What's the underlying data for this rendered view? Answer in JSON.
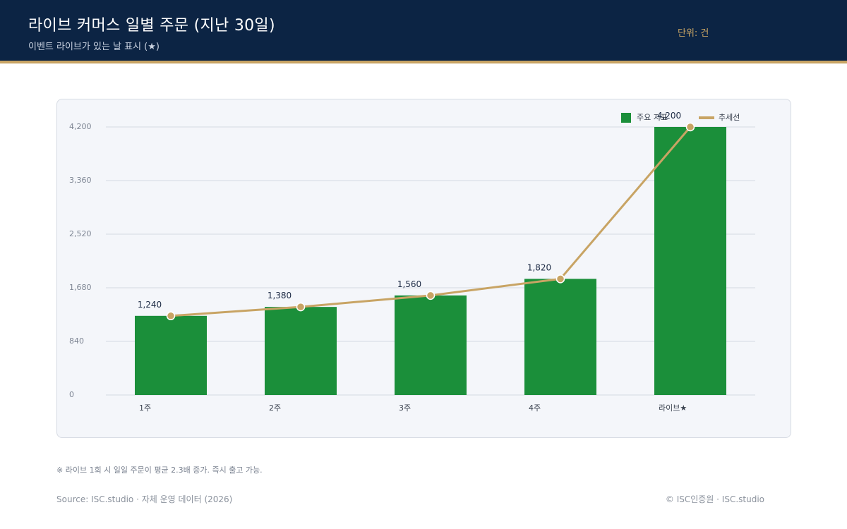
{
  "header": {
    "title": "라이브 커머스 일별 주문 (지난 30일)",
    "subtitle": "이벤트 라이브가 있는 날 표시 (★)",
    "unit": "단위: 건"
  },
  "colors": {
    "header_bg": "#0c2444",
    "accent_gold": "#c8a464",
    "bar_green": "#1b8f3a",
    "panel_bg": "#f4f6fa"
  },
  "chart_data": {
    "type": "bar",
    "categories": [
      "1주",
      "2주",
      "3주",
      "4주",
      "라이브★"
    ],
    "series": [
      {
        "name": "주요 지표",
        "type": "bar",
        "values": [
          1240,
          1380,
          1560,
          1820,
          4200
        ]
      },
      {
        "name": "추세선",
        "type": "line",
        "values": [
          1240,
          1380,
          1560,
          1820,
          4200
        ]
      }
    ],
    "data_labels": [
      "1,240",
      "1,380",
      "1,560",
      "1,820",
      "4,200"
    ],
    "ylim": [
      0,
      4200
    ],
    "yticks": [
      0,
      840,
      1680,
      2520,
      3360,
      4200
    ],
    "ytick_labels": [
      "0",
      "840",
      "1,680",
      "2,520",
      "3,360",
      "4,200"
    ],
    "grid": true,
    "legend_position": "top-right"
  },
  "footer": {
    "note": "※ 라이브 1회 시 일일 주문이 평균 2.3배 증가. 즉시 출고 가능.",
    "source": "Source: ISC.studio · 자체 운영 데이터 (2026)",
    "copyright": "© ISC인증원 · ISC.studio"
  }
}
